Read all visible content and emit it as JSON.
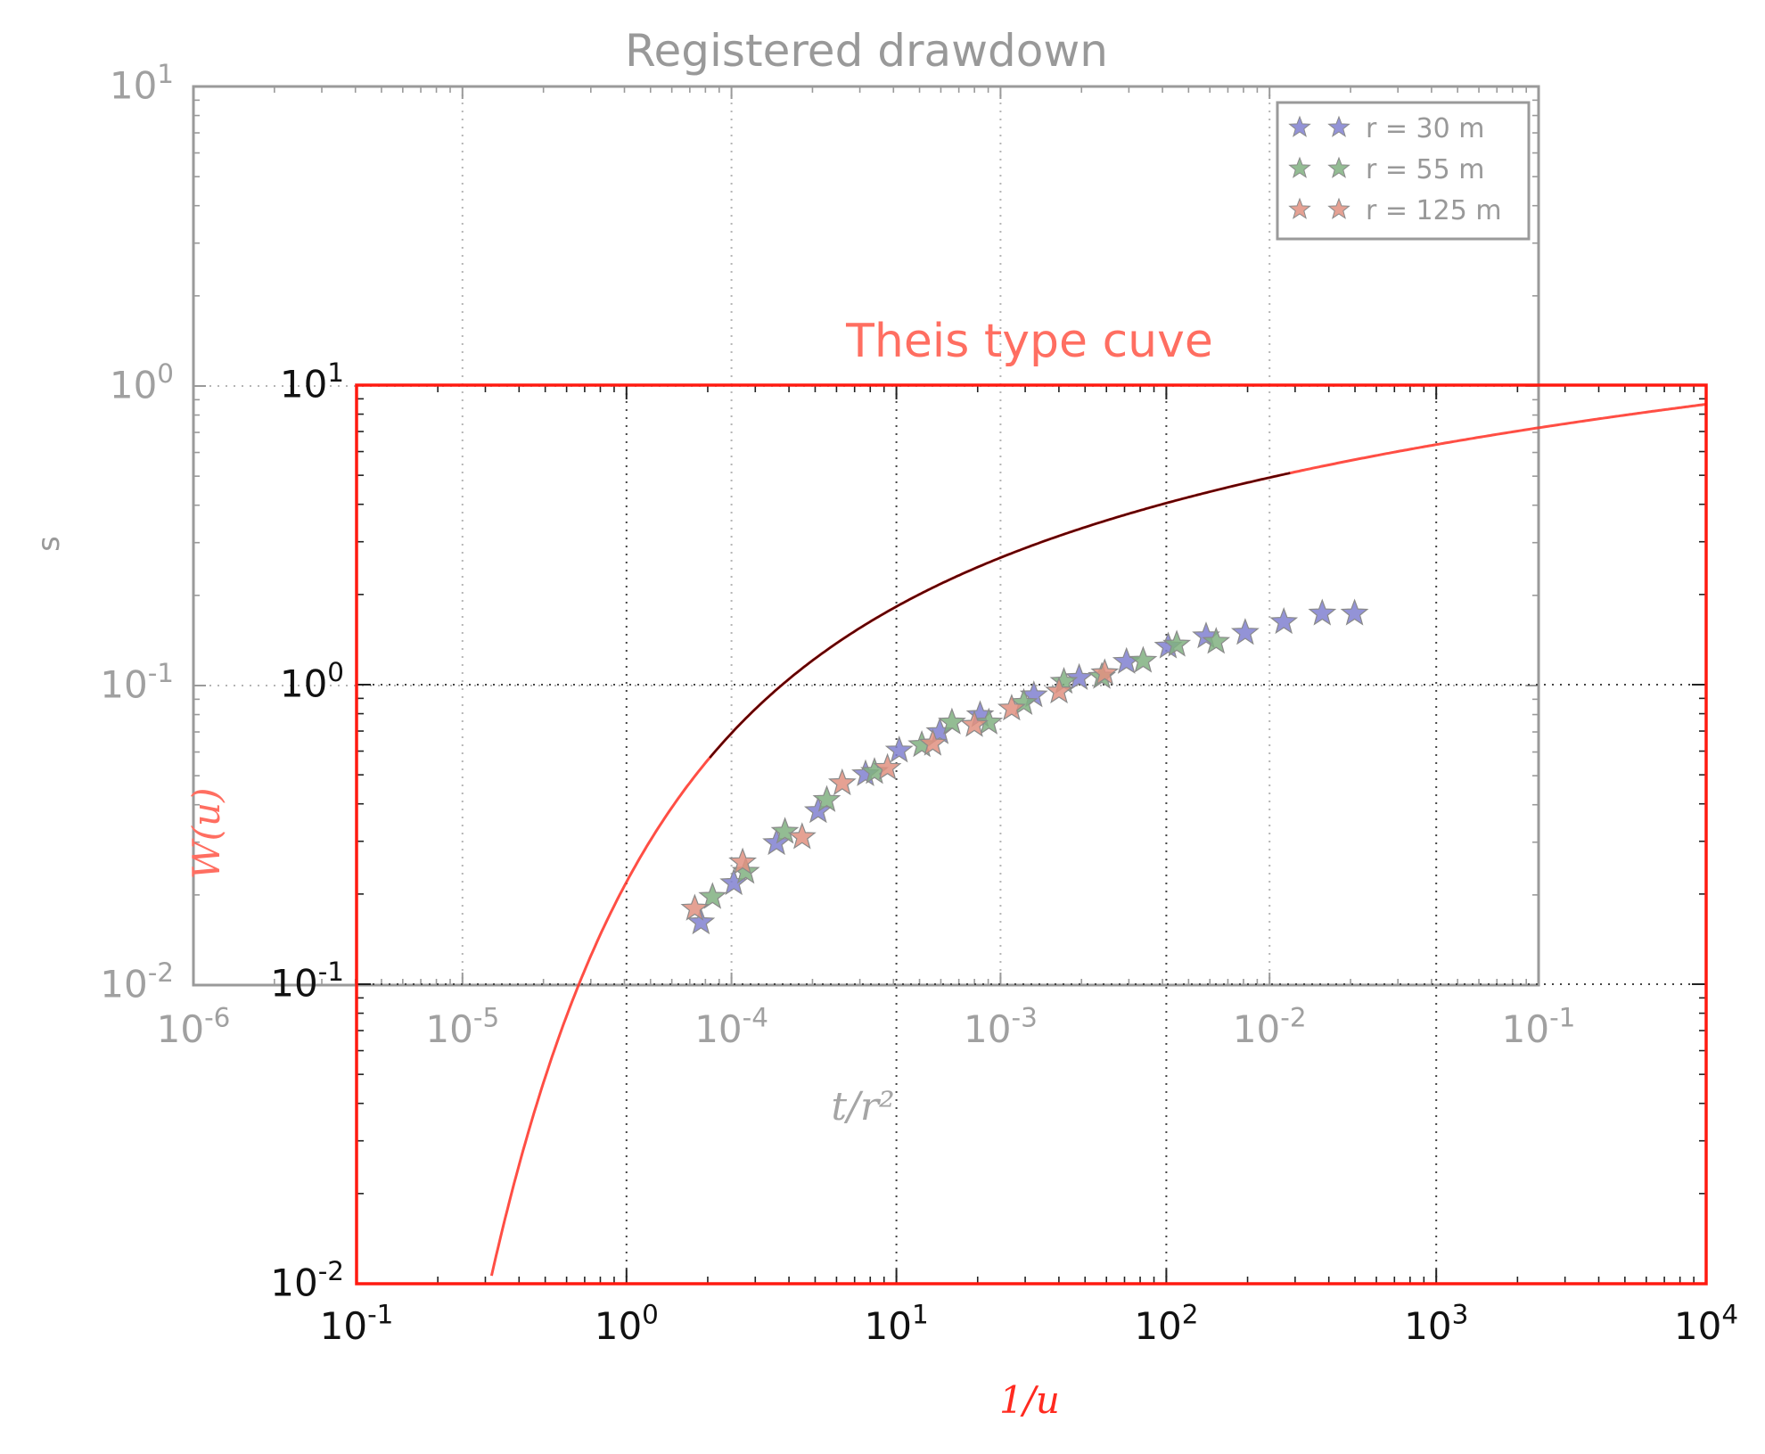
{
  "chart_data": [
    {
      "id": "drawdown",
      "type": "scatter",
      "title": "Registered drawdown",
      "xlabel": "t/r²",
      "ylabel": "s",
      "xscale": "log",
      "yscale": "log",
      "xlim": [
        1e-06,
        0.1
      ],
      "ylim": [
        0.01,
        10
      ],
      "xticks": [
        {
          "base": "10",
          "exp": "-6"
        },
        {
          "base": "10",
          "exp": "-5"
        },
        {
          "base": "10",
          "exp": "-4"
        },
        {
          "base": "10",
          "exp": "-3"
        },
        {
          "base": "10",
          "exp": "-2"
        },
        {
          "base": "10",
          "exp": "-1"
        }
      ],
      "yticks": [
        {
          "base": "10",
          "exp": "-2"
        },
        {
          "base": "10",
          "exp": "-1"
        },
        {
          "base": "10",
          "exp": "0"
        },
        {
          "base": "10",
          "exp": "1"
        }
      ],
      "grid": true,
      "color": "#999999",
      "legend_position": "top-right",
      "series": [
        {
          "name": "r =   30 m",
          "color": "#8080d0",
          "x": [
            7.7e-05,
            0.000102,
            0.000147,
            0.00021,
            0.000315,
            0.00042,
            0.000595,
            0.00084,
            0.00133,
            0.00196,
            0.00294,
            0.0042,
            0.00581,
            0.00812,
            0.0113,
            0.0157,
            0.0207
          ],
          "y": [
            0.0162,
            0.0219,
            0.0298,
            0.0381,
            0.0506,
            0.0607,
            0.0699,
            0.0797,
            0.0928,
            0.106,
            0.12,
            0.135,
            0.146,
            0.15,
            0.163,
            0.174,
            0.174
          ]
        },
        {
          "name": "r =   55 m",
          "color": "#80b080",
          "x": [
            8.5e-05,
            0.000113,
            0.000158,
            0.000226,
            0.00034,
            0.00051,
            0.00066,
            0.000905,
            0.00122,
            0.00172,
            0.00238,
            0.00339,
            0.00452,
            0.00633
          ],
          "y": [
            0.0197,
            0.0239,
            0.0325,
            0.0415,
            0.0515,
            0.0633,
            0.0753,
            0.0753,
            0.0875,
            0.103,
            0.107,
            0.121,
            0.137,
            0.14
          ]
        },
        {
          "name": "r = 125 m",
          "color": "#e09080",
          "x": [
            7.3e-05,
            0.00011,
            0.000183,
            0.000258,
            0.00038,
            0.00056,
            0.000799,
            0.0011,
            0.00165,
            0.00244
          ],
          "y": [
            0.018,
            0.0257,
            0.0312,
            0.0472,
            0.0531,
            0.064,
            0.0739,
            0.0838,
            0.0956,
            0.11
          ]
        }
      ]
    },
    {
      "id": "theis",
      "type": "line",
      "title": "Theis type cuve",
      "xlabel": "1/u",
      "ylabel": "W(u)",
      "xscale": "log",
      "yscale": "log",
      "xlim": [
        0.1,
        10000
      ],
      "ylim": [
        0.01,
        10
      ],
      "xticks": [
        {
          "base": "10",
          "exp": "-1"
        },
        {
          "base": "10",
          "exp": "0"
        },
        {
          "base": "10",
          "exp": "1"
        },
        {
          "base": "10",
          "exp": "2"
        },
        {
          "base": "10",
          "exp": "3"
        },
        {
          "base": "10",
          "exp": "4"
        }
      ],
      "yticks": [
        {
          "base": "10",
          "exp": "-2"
        },
        {
          "base": "10",
          "exp": "-1"
        },
        {
          "base": "10",
          "exp": "0"
        },
        {
          "base": "10",
          "exp": "1"
        }
      ],
      "grid": true,
      "color": "#ff3b30",
      "curve": "Theis well function W(u) versus 1/u"
    }
  ]
}
